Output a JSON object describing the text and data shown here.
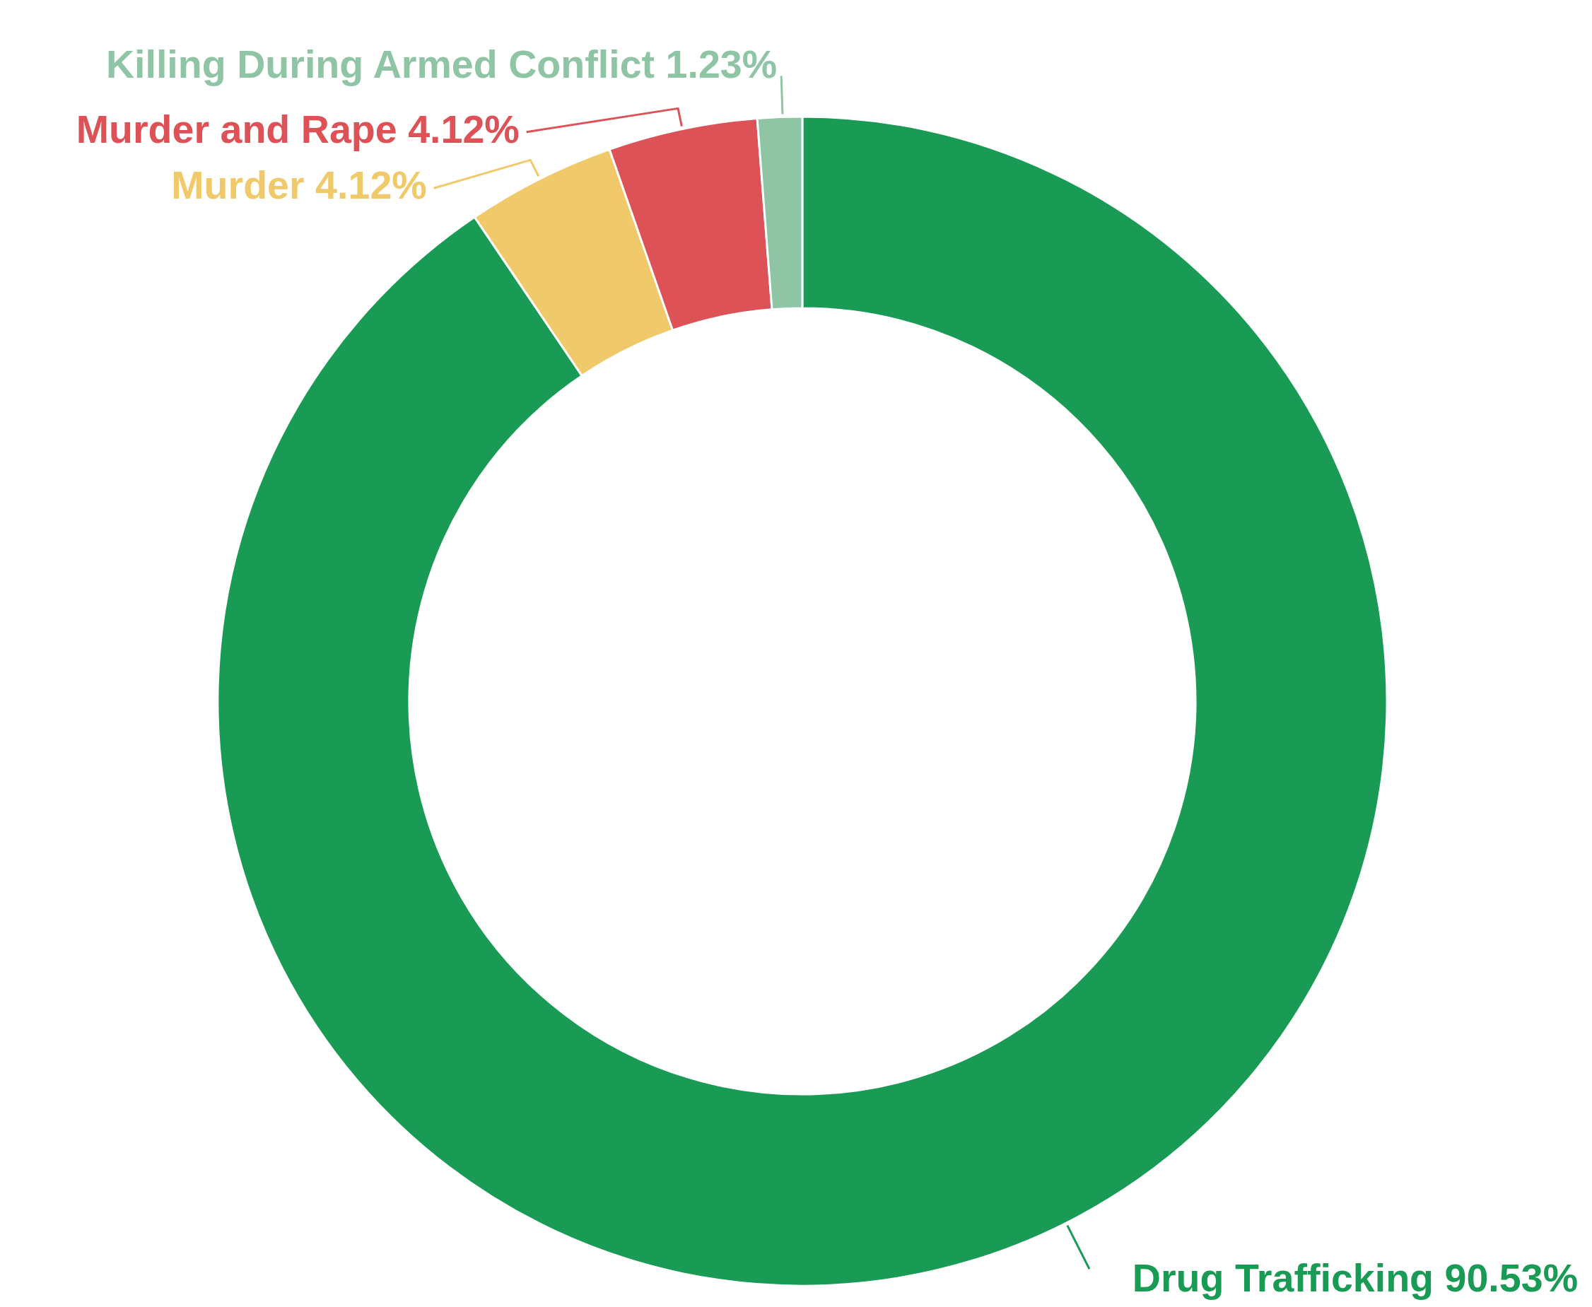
{
  "chart_data": {
    "type": "donut",
    "categories": [
      "Drug Trafficking",
      "Murder",
      "Murder and Rape",
      "Killing During Armed Conflict"
    ],
    "values": [
      90.53,
      4.12,
      4.12,
      1.23
    ],
    "colors": [
      "#1a9b55",
      "#f0c96a",
      "#dc5257",
      "#8fc5a5"
    ],
    "value_labels": [
      "90.53%",
      "4.12%",
      "4.12%",
      "1.23%"
    ]
  }
}
